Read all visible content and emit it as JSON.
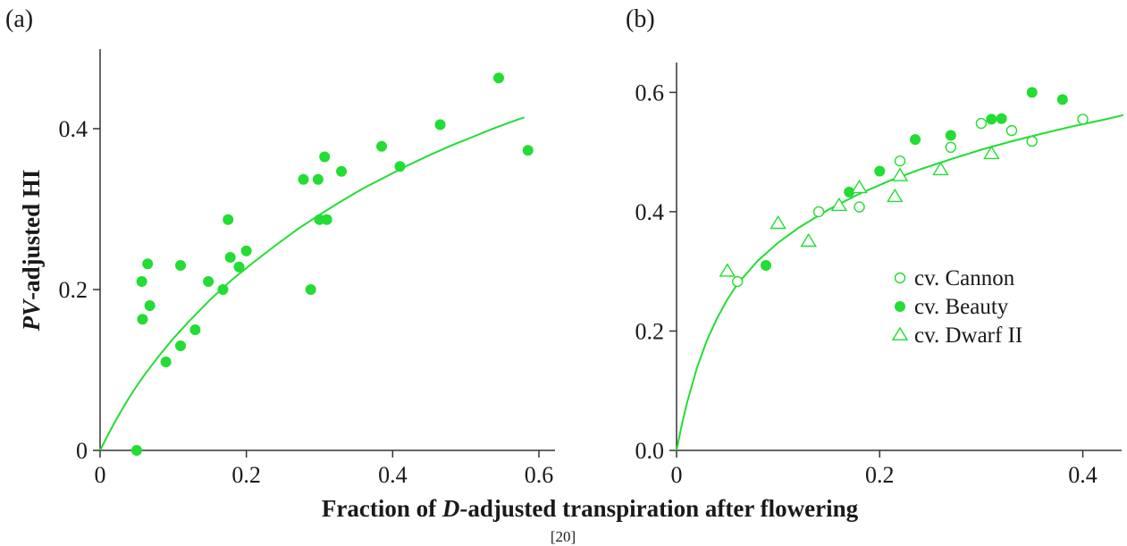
{
  "figure": {
    "xlabel_prefix": "Fraction of ",
    "xlabel_italic": "D",
    "xlabel_suffix": "-adjusted transpiration after flowering",
    "ylabel_italic": "PV",
    "ylabel_suffix": "-adjusted HI",
    "source": "[20]"
  },
  "colors": {
    "marker": "#22dd33",
    "curve": "#22dd33",
    "axis": "#333333"
  },
  "chart_data": [
    {
      "type": "scatter",
      "panel_label": "(a)",
      "xlim": [
        0,
        0.6
      ],
      "ylim": [
        0,
        0.5
      ],
      "x_ticks": [
        0,
        0.2,
        0.4,
        0.6
      ],
      "x_tick_labels": [
        "0",
        "0.2",
        "0.4",
        "0.6"
      ],
      "y_ticks": [
        0,
        0.2,
        0.4
      ],
      "y_tick_labels": [
        "0",
        "0.2",
        "0.4"
      ],
      "grid": false,
      "series": [
        {
          "marker": "filled-circle",
          "points": [
            [
              0.05,
              0.0
            ],
            [
              0.057,
              0.21
            ],
            [
              0.058,
              0.163
            ],
            [
              0.065,
              0.232
            ],
            [
              0.068,
              0.18
            ],
            [
              0.09,
              0.11
            ],
            [
              0.11,
              0.23
            ],
            [
              0.11,
              0.13
            ],
            [
              0.13,
              0.15
            ],
            [
              0.148,
              0.21
            ],
            [
              0.168,
              0.2
            ],
            [
              0.175,
              0.287
            ],
            [
              0.178,
              0.24
            ],
            [
              0.19,
              0.228
            ],
            [
              0.2,
              0.248
            ],
            [
              0.278,
              0.337
            ],
            [
              0.288,
              0.2
            ],
            [
              0.298,
              0.337
            ],
            [
              0.3,
              0.287
            ],
            [
              0.307,
              0.365
            ],
            [
              0.31,
              0.287
            ],
            [
              0.33,
              0.347
            ],
            [
              0.385,
              0.378
            ],
            [
              0.41,
              0.353
            ],
            [
              0.465,
              0.405
            ],
            [
              0.545,
              0.463
            ],
            [
              0.585,
              0.373
            ]
          ]
        }
      ],
      "curve": {
        "points": [
          [
            0,
            0
          ],
          [
            0.01,
            0.018
          ],
          [
            0.02,
            0.035
          ],
          [
            0.03,
            0.051
          ],
          [
            0.04,
            0.066
          ],
          [
            0.05,
            0.08
          ],
          [
            0.06,
            0.093
          ],
          [
            0.08,
            0.117
          ],
          [
            0.1,
            0.139
          ],
          [
            0.12,
            0.159
          ],
          [
            0.15,
            0.187
          ],
          [
            0.18,
            0.212
          ],
          [
            0.21,
            0.234
          ],
          [
            0.24,
            0.255
          ],
          [
            0.27,
            0.275
          ],
          [
            0.3,
            0.293
          ],
          [
            0.33,
            0.31
          ],
          [
            0.36,
            0.326
          ],
          [
            0.39,
            0.34
          ],
          [
            0.42,
            0.354
          ],
          [
            0.45,
            0.367
          ],
          [
            0.48,
            0.379
          ],
          [
            0.51,
            0.39
          ],
          [
            0.54,
            0.401
          ],
          [
            0.57,
            0.411
          ],
          [
            0.58,
            0.414
          ]
        ]
      }
    },
    {
      "type": "scatter",
      "panel_label": "(b)",
      "xlim": [
        0,
        0.44
      ],
      "ylim": [
        0,
        0.65
      ],
      "x_ticks": [
        0,
        0.2,
        0.4
      ],
      "x_tick_labels": [
        "0",
        "0.2",
        "0.4"
      ],
      "y_ticks": [
        0,
        0.2,
        0.4,
        0.6
      ],
      "y_tick_labels": [
        "0.0",
        "0.2",
        "0.4",
        "0.6"
      ],
      "grid": false,
      "legend_position": "center-right",
      "series": [
        {
          "name": "cv. Cannon",
          "marker": "open-circle",
          "points": [
            [
              0.06,
              0.283
            ],
            [
              0.14,
              0.4
            ],
            [
              0.18,
              0.408
            ],
            [
              0.22,
              0.485
            ],
            [
              0.27,
              0.508
            ],
            [
              0.3,
              0.548
            ],
            [
              0.33,
              0.536
            ],
            [
              0.35,
              0.518
            ],
            [
              0.4,
              0.555
            ]
          ]
        },
        {
          "name": "cv. Beauty",
          "marker": "filled-circle",
          "points": [
            [
              0.088,
              0.31
            ],
            [
              0.17,
              0.433
            ],
            [
              0.2,
              0.468
            ],
            [
              0.235,
              0.521
            ],
            [
              0.27,
              0.528
            ],
            [
              0.31,
              0.555
            ],
            [
              0.32,
              0.556
            ],
            [
              0.35,
              0.6
            ],
            [
              0.38,
              0.588
            ]
          ]
        },
        {
          "name": "cv. Dwarf II",
          "marker": "open-triangle",
          "points": [
            [
              0.05,
              0.3
            ],
            [
              0.1,
              0.38
            ],
            [
              0.13,
              0.35
            ],
            [
              0.16,
              0.41
            ],
            [
              0.18,
              0.44
            ],
            [
              0.215,
              0.425
            ],
            [
              0.22,
              0.46
            ],
            [
              0.26,
              0.47
            ],
            [
              0.31,
              0.497
            ]
          ]
        }
      ],
      "curve": {
        "points": [
          [
            0,
            0
          ],
          [
            0.005,
            0.042
          ],
          [
            0.01,
            0.078
          ],
          [
            0.02,
            0.138
          ],
          [
            0.03,
            0.185
          ],
          [
            0.04,
            0.222
          ],
          [
            0.05,
            0.253
          ],
          [
            0.06,
            0.279
          ],
          [
            0.08,
            0.318
          ],
          [
            0.1,
            0.348
          ],
          [
            0.12,
            0.373
          ],
          [
            0.15,
            0.404
          ],
          [
            0.18,
            0.43
          ],
          [
            0.21,
            0.452
          ],
          [
            0.24,
            0.471
          ],
          [
            0.27,
            0.488
          ],
          [
            0.3,
            0.504
          ],
          [
            0.33,
            0.518
          ],
          [
            0.36,
            0.531
          ],
          [
            0.39,
            0.543
          ],
          [
            0.42,
            0.554
          ],
          [
            0.44,
            0.562
          ]
        ]
      }
    }
  ]
}
